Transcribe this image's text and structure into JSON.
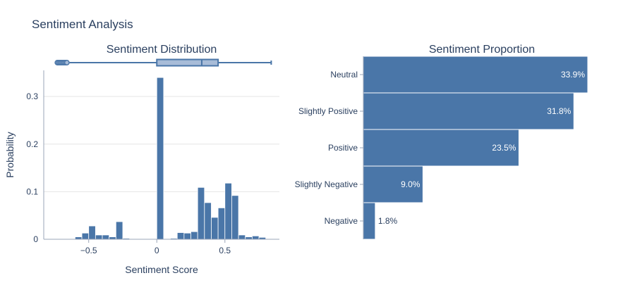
{
  "page_title": "Sentiment Analysis",
  "colors": {
    "bar": "#4a76a8",
    "bar_edge": "#ffffff",
    "box_fill": "#a8bcd8",
    "box_line": "#4a76a8",
    "grid": "#e5e5e5",
    "axis": "#9aa5b8",
    "text": "#2a3f5f",
    "label_inside": "#ffffff"
  },
  "chart_data": [
    {
      "type": "histogram",
      "title": "Sentiment Distribution",
      "xlabel": "Sentiment Score",
      "ylabel": "Probability",
      "xlim": [
        -0.83,
        0.9
      ],
      "ylim": [
        0,
        0.355
      ],
      "xticks": [
        -0.5,
        0,
        0.5
      ],
      "xtick_labels": [
        "−0.5",
        "0",
        "0.5"
      ],
      "yticks": [
        0,
        0.1,
        0.2,
        0.3
      ],
      "ytick_labels": [
        "0",
        "0.1",
        "0.2",
        "0.3"
      ],
      "bin_width": 0.05,
      "bins": [
        {
          "start": -0.65,
          "value": 0.001
        },
        {
          "start": -0.6,
          "value": 0.005
        },
        {
          "start": -0.55,
          "value": 0.013
        },
        {
          "start": -0.5,
          "value": 0.028
        },
        {
          "start": -0.45,
          "value": 0.009
        },
        {
          "start": -0.4,
          "value": 0.009
        },
        {
          "start": -0.35,
          "value": 0.005
        },
        {
          "start": -0.3,
          "value": 0.037
        },
        {
          "start": -0.25,
          "value": 0.002
        },
        {
          "start": -0.15,
          "value": 0.001
        },
        {
          "start": 0.0,
          "value": 0.34
        },
        {
          "start": 0.1,
          "value": 0.002
        },
        {
          "start": 0.15,
          "value": 0.014
        },
        {
          "start": 0.2,
          "value": 0.013
        },
        {
          "start": 0.25,
          "value": 0.016
        },
        {
          "start": 0.3,
          "value": 0.109
        },
        {
          "start": 0.35,
          "value": 0.077
        },
        {
          "start": 0.4,
          "value": 0.046
        },
        {
          "start": 0.45,
          "value": 0.066
        },
        {
          "start": 0.5,
          "value": 0.118
        },
        {
          "start": 0.55,
          "value": 0.092
        },
        {
          "start": 0.6,
          "value": 0.009
        },
        {
          "start": 0.65,
          "value": 0.005
        },
        {
          "start": 0.7,
          "value": 0.007
        },
        {
          "start": 0.75,
          "value": 0.004
        },
        {
          "start": 0.8,
          "value": 0.001
        }
      ],
      "boxplot": {
        "lower_fence": -0.64,
        "q1": 0.0,
        "median": 0.33,
        "q3": 0.45,
        "upper_fence": 0.84,
        "outliers": [
          -0.73,
          -0.72,
          -0.71,
          -0.7,
          -0.69,
          -0.68,
          -0.67,
          -0.66
        ]
      }
    },
    {
      "type": "bar",
      "orientation": "horizontal",
      "title": "Sentiment Proportion",
      "categories": [
        "Neutral",
        "Slightly Positive",
        "Positive",
        "Slightly Negative",
        "Negative"
      ],
      "values": [
        33.9,
        31.8,
        23.5,
        9.0,
        1.8
      ],
      "value_labels": [
        "33.9%",
        "31.8%",
        "23.5%",
        "9.0%",
        "1.8%"
      ],
      "xlim": [
        0,
        33.9
      ]
    }
  ]
}
